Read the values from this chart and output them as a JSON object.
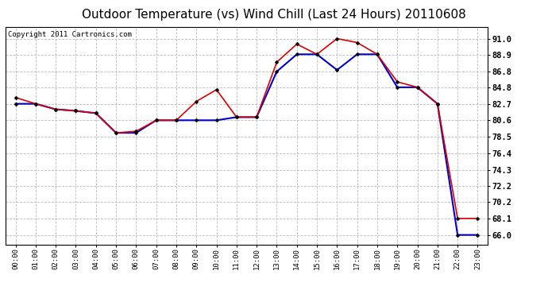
{
  "title": "Outdoor Temperature (vs) Wind Chill (Last 24 Hours) 20110608",
  "copyright": "Copyright 2011 Cartronics.com",
  "x_labels": [
    "00:00",
    "01:00",
    "02:00",
    "03:00",
    "04:00",
    "05:00",
    "06:00",
    "07:00",
    "08:00",
    "09:00",
    "10:00",
    "11:00",
    "12:00",
    "13:00",
    "14:00",
    "15:00",
    "16:00",
    "17:00",
    "18:00",
    "19:00",
    "20:00",
    "21:00",
    "22:00",
    "23:00"
  ],
  "temp_red": [
    83.5,
    82.7,
    82.0,
    81.8,
    81.5,
    79.0,
    79.2,
    80.6,
    80.6,
    83.0,
    84.5,
    81.0,
    81.0,
    88.0,
    90.3,
    89.0,
    91.0,
    90.5,
    89.0,
    85.5,
    84.8,
    82.7,
    68.1,
    68.1
  ],
  "wind_blue": [
    82.7,
    82.7,
    82.0,
    81.8,
    81.5,
    79.0,
    79.0,
    80.6,
    80.6,
    80.6,
    80.6,
    81.0,
    81.0,
    86.8,
    89.0,
    89.0,
    87.0,
    89.0,
    89.0,
    84.8,
    84.8,
    82.7,
    66.0,
    66.0
  ],
  "ylim_min": 64.8,
  "ylim_max": 92.5,
  "yticks": [
    66.0,
    68.1,
    70.2,
    72.2,
    74.3,
    76.4,
    78.5,
    80.6,
    82.7,
    84.8,
    86.8,
    88.9,
    91.0
  ],
  "bg_color": "#ffffff",
  "plot_bg": "#ffffff",
  "grid_color": "#bbbbbb",
  "red_color": "#dd0000",
  "blue_color": "#0000cc",
  "title_fontsize": 11,
  "copyright_fontsize": 6.5,
  "tick_fontsize": 7.5,
  "xtick_fontsize": 6.5
}
